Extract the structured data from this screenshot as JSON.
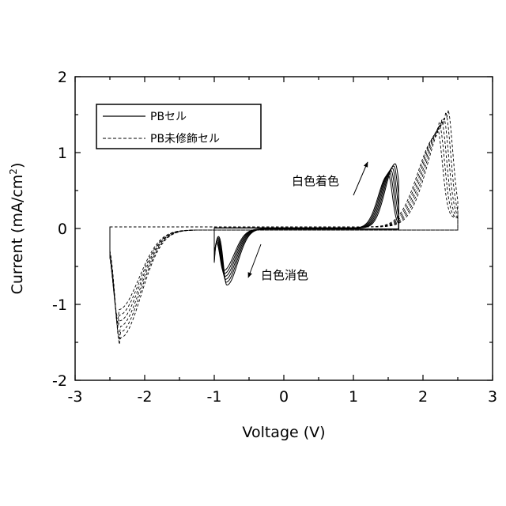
{
  "chart_data": {
    "type": "line",
    "title": "",
    "xlabel": "Voltage (V)",
    "ylabel_main": "Current (mA/cm",
    "ylabel_sup": "2",
    "ylabel_tail": ")",
    "xlim": [
      -3,
      3
    ],
    "ylim": [
      -2,
      2
    ],
    "xticks": [
      -3,
      -2,
      -1,
      0,
      1,
      2,
      3
    ],
    "yticks": [
      -2,
      -1,
      0,
      1,
      2
    ],
    "x_tick_labels": [
      "-3",
      "-2",
      "-1",
      "0",
      "1",
      "2",
      "3"
    ],
    "y_tick_labels": [
      "-2",
      "-1",
      "0",
      "1",
      "2"
    ],
    "grid": false,
    "legend_position": "top-left",
    "series": [
      {
        "name": "PBセル",
        "style": "solid",
        "cycles": 6,
        "vertex_voltage": [
          -1.0,
          1.65
        ],
        "anodic_peak": {
          "voltage": [
            1.5,
            1.6
          ],
          "current": [
            0.7,
            0.84
          ]
        },
        "cathodic_peak": {
          "voltage": [
            -0.87,
            -0.82
          ],
          "current": [
            -0.55,
            -0.74
          ]
        }
      },
      {
        "name": "PB未修飾セル",
        "style": "dashed",
        "cycles": 6,
        "vertex_voltage": [
          -2.5,
          2.5
        ],
        "anodic_peak": {
          "voltage": [
            2.2,
            2.35
          ],
          "current": [
            1.2,
            1.45
          ]
        },
        "cathodic_peak": {
          "voltage": [
            -2.38,
            -2.35
          ],
          "current": [
            -1.05,
            -1.42
          ]
        }
      }
    ],
    "annotations": [
      {
        "text": "白色着色",
        "arrow": "up"
      },
      {
        "text": "白色消色",
        "arrow": "down"
      }
    ]
  }
}
